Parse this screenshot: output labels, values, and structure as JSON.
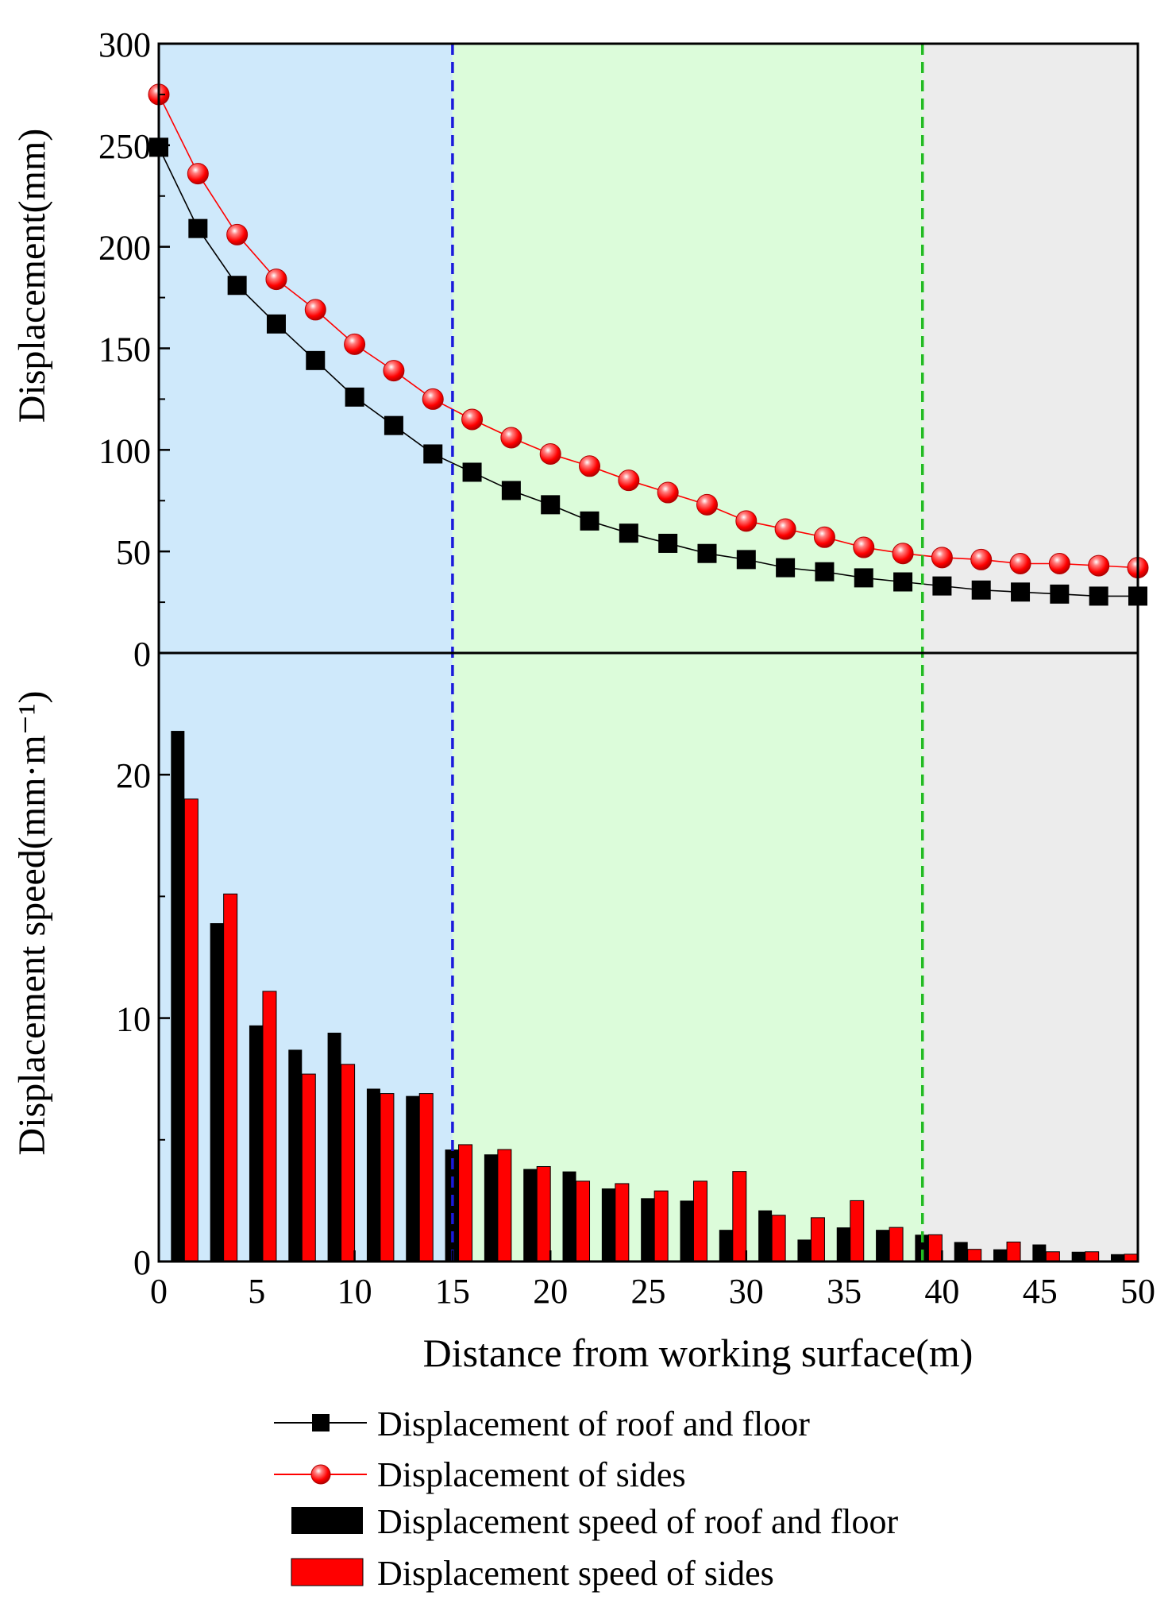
{
  "chart_data": [
    {
      "type": "line",
      "ylabel": "Displacement(mm)",
      "ylim": [
        0,
        300
      ],
      "yticks": [
        0,
        50,
        100,
        150,
        200,
        250,
        300
      ],
      "x": [
        0,
        2,
        4,
        6,
        8,
        10,
        12,
        14,
        16,
        18,
        20,
        22,
        24,
        26,
        28,
        30,
        32,
        34,
        36,
        38,
        40,
        42,
        44,
        46,
        48,
        50
      ],
      "series": [
        {
          "name": "Displacement of roof and floor",
          "color": "#000000",
          "marker": "square",
          "values": [
            249,
            209,
            181,
            162,
            144,
            126,
            112,
            98,
            89,
            80,
            73,
            65,
            59,
            54,
            49,
            46,
            42,
            40,
            37,
            35,
            33,
            31,
            30,
            29,
            28,
            28
          ]
        },
        {
          "name": "Displacement of sides",
          "color": "#ff0000",
          "marker": "sphere",
          "values": [
            275,
            236,
            206,
            184,
            169,
            152,
            139,
            125,
            115,
            106,
            98,
            92,
            85,
            79,
            73,
            65,
            61,
            57,
            52,
            49,
            47,
            46,
            44,
            44,
            43,
            42
          ]
        }
      ]
    },
    {
      "type": "bar",
      "ylabel": "Displacement speed(mm·m⁻¹)",
      "ylim": [
        0,
        25
      ],
      "yticks": [
        0,
        10,
        20
      ],
      "categories": [
        2,
        4,
        6,
        8,
        10,
        12,
        14,
        16,
        18,
        20,
        22,
        24,
        26,
        28,
        30,
        32,
        34,
        36,
        38,
        40,
        42,
        44,
        46,
        48,
        50
      ],
      "series": [
        {
          "name": "Displacement speed of roof and floor",
          "color": "#000000",
          "values": [
            21.8,
            13.9,
            9.7,
            8.7,
            9.4,
            7.1,
            6.8,
            4.6,
            4.4,
            3.8,
            3.7,
            3.0,
            2.6,
            2.5,
            1.3,
            2.1,
            0.9,
            1.4,
            1.3,
            1.1,
            0.8,
            0.5,
            0.7,
            0.4,
            0.3
          ]
        },
        {
          "name": "Displacement speed of sides",
          "color": "#ff0000",
          "values": [
            19.0,
            15.1,
            11.1,
            7.7,
            8.1,
            6.9,
            6.9,
            4.8,
            4.6,
            3.9,
            3.3,
            3.2,
            2.9,
            3.3,
            3.7,
            1.9,
            1.8,
            2.5,
            1.4,
            1.1,
            0.5,
            0.8,
            0.4,
            0.4,
            0.3
          ]
        }
      ]
    }
  ],
  "shared": {
    "xlabel": "Distance from working surface(m)",
    "xlim": [
      0,
      50
    ],
    "xticks": [
      0,
      5,
      10,
      15,
      20,
      25,
      30,
      35,
      40,
      45,
      50
    ],
    "zones": [
      {
        "from": 0,
        "to": 15,
        "fill": "#cfe9fb"
      },
      {
        "from": 15,
        "to": 39,
        "fill": "#dcfcda"
      },
      {
        "from": 39,
        "to": 50,
        "fill": "#ececec"
      }
    ],
    "boundaries": [
      {
        "x": 15,
        "color": "#1a1adb"
      },
      {
        "x": 39,
        "color": "#22bb22"
      }
    ],
    "legend_position": "bottom-center"
  }
}
